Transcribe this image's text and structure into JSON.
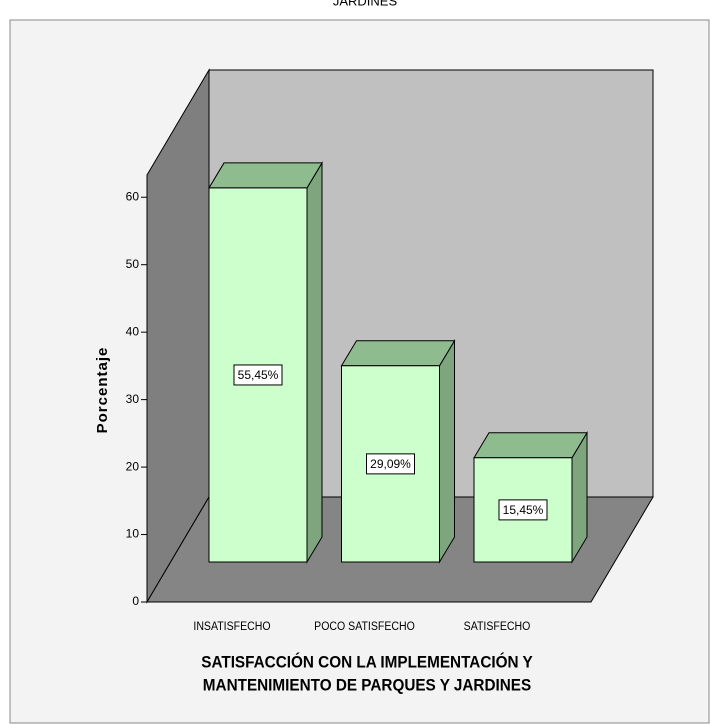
{
  "chart_data": {
    "type": "bar3d",
    "title": "JARDINES",
    "x_label": [
      "SATISFACCIÓN CON LA IMPLEMENTACIÓN Y",
      "MANTENIMIENTO DE PARQUES Y JARDINES"
    ],
    "y_label": "Porcentaje",
    "categories": [
      "INSATISFECHO",
      "POCO SATISFECHO",
      "SATISFECHO"
    ],
    "values": [
      55.45,
      29.09,
      15.45
    ],
    "value_labels": [
      "55,45%",
      "29,09%",
      "15,45%"
    ],
    "color": "#ccffcc",
    "ylim": [
      0,
      63
    ],
    "yticks": [
      0,
      10,
      20,
      30,
      40,
      50,
      60
    ]
  }
}
